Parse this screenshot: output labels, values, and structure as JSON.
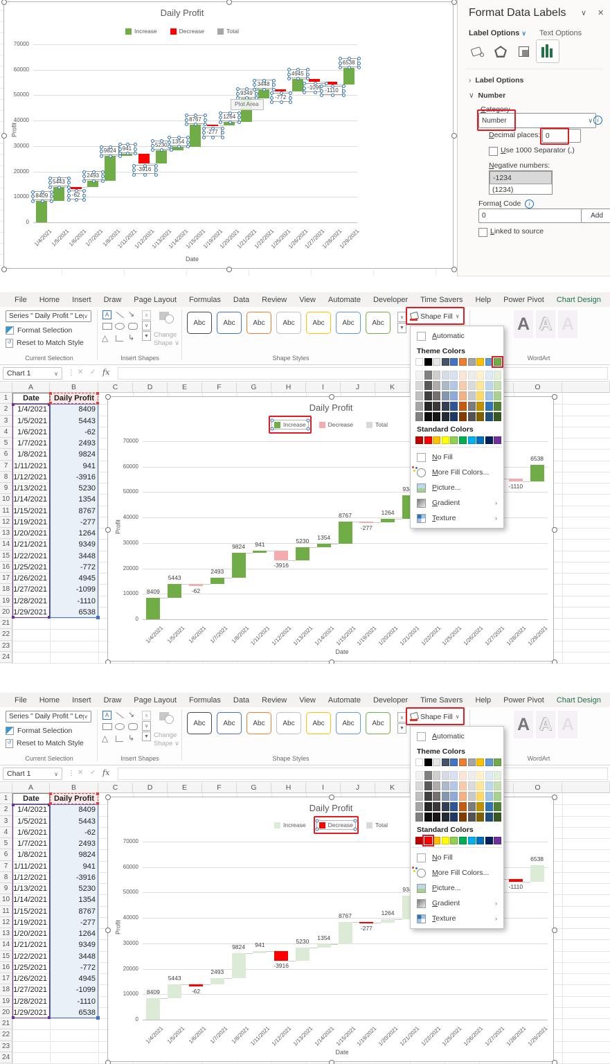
{
  "chart_data": {
    "type": "waterfall",
    "title": "Daily Profit",
    "xlabel": "Date",
    "ylabel": "Profit",
    "legend": [
      "Increase",
      "Decrease",
      "Total"
    ],
    "categories": [
      "1/4/2021",
      "1/5/2021",
      "1/6/2021",
      "1/7/2021",
      "1/8/2021",
      "1/11/2021",
      "1/12/2021",
      "1/13/2021",
      "1/14/2021",
      "1/15/2021",
      "1/19/2021",
      "1/20/2021",
      "1/21/2021",
      "1/22/2021",
      "1/25/2021",
      "1/26/2021",
      "1/27/2021",
      "1/28/2021",
      "1/29/2021"
    ],
    "values": [
      8409,
      5443,
      -62,
      2493,
      9824,
      941,
      -3916,
      5230,
      1354,
      8767,
      -277,
      1264,
      9349,
      3448,
      -772,
      4945,
      -1099,
      -1110,
      6538
    ],
    "ylim": [
      0,
      70000
    ],
    "ytick_step": 10000,
    "grid": true,
    "legend_position": "top",
    "variants": {
      "top": {
        "increase": "#70AD47",
        "decrease": "#FF0000",
        "total": "#A6A6A6",
        "data_labels_selected": true,
        "tooltip": "Plot Area"
      },
      "middle": {
        "increase": "#70AD47",
        "decrease": "#F4ACAE",
        "total": "#D9D9D9",
        "selected_legend": "Increase"
      },
      "bottom": {
        "increase": "#DCEBD5",
        "decrease": "#FF0000",
        "total": "#D9D9D9",
        "selected_legend": "Decrease"
      }
    }
  },
  "ribbon": {
    "tabs": [
      "File",
      "Home",
      "Insert",
      "Draw",
      "Page Layout",
      "Formulas",
      "Data",
      "Review",
      "View",
      "Automate",
      "Developer",
      "Time Savers",
      "Help",
      "Power Pivot",
      "Chart Design"
    ],
    "active_tab": "Chart Design",
    "current_selection": {
      "combo": "Series \" Daily Profit \" Leg",
      "format_selection": "Format Selection",
      "reset": "Reset to Match Style",
      "label": "Current Selection"
    },
    "insert_shapes": {
      "label": "Insert Shapes",
      "change_line1": "Change",
      "change_line2": "Shape"
    },
    "shape_styles": {
      "label": "Shape Styles",
      "preview": "Abc",
      "border_colors": [
        "#464646",
        "#4472C4",
        "#ED7D31",
        "#BFBFBF",
        "#FFC000",
        "#5B9BD5",
        "#70AD47"
      ]
    },
    "shape_fill": "Shape Fill",
    "wordart": {
      "label": "WordArt",
      "letter": "A"
    }
  },
  "formula_bar": {
    "name_box": "Chart 1",
    "fx": "fx"
  },
  "sheet": {
    "columns": [
      "A",
      "B",
      "C",
      "D",
      "E",
      "F",
      "G",
      "H",
      "I",
      "J",
      "K",
      "L",
      "M",
      "N",
      "O"
    ],
    "visible_rows": 25,
    "table": {
      "headers": [
        "Date",
        "Daily Profit"
      ],
      "rows": [
        [
          "1/4/2021",
          "8409"
        ],
        [
          "1/5/2021",
          "5443"
        ],
        [
          "1/6/2021",
          "-62"
        ],
        [
          "1/7/2021",
          "2493"
        ],
        [
          "1/8/2021",
          "9824"
        ],
        [
          "1/11/2021",
          "941"
        ],
        [
          "1/12/2021",
          "-3916"
        ],
        [
          "1/13/2021",
          "5230"
        ],
        [
          "1/14/2021",
          "1354"
        ],
        [
          "1/15/2021",
          "8767"
        ],
        [
          "1/19/2021",
          "-277"
        ],
        [
          "1/20/2021",
          "1264"
        ],
        [
          "1/21/2021",
          "9349"
        ],
        [
          "1/22/2021",
          "3448"
        ],
        [
          "1/25/2021",
          "-772"
        ],
        [
          "1/26/2021",
          "4945"
        ],
        [
          "1/27/2021",
          "-1099"
        ],
        [
          "1/28/2021",
          "-1110"
        ],
        [
          "1/29/2021",
          "6538"
        ]
      ]
    }
  },
  "fill_menu": {
    "automatic": "Automatic",
    "theme_header": "Theme Colors",
    "standard_header": "Standard Colors",
    "no_fill": "No Fill",
    "more_fill": "More Fill Colors...",
    "picture": "Picture...",
    "gradient": "Gradient",
    "texture": "Texture",
    "theme_colors": [
      "#FFFFFF",
      "#000000",
      "#E7E6E6",
      "#44546A",
      "#4472C4",
      "#ED7D31",
      "#A5A5A5",
      "#FFC000",
      "#5B9BD5",
      "#70AD47"
    ],
    "tint_rows": [
      [
        "#F2F2F2",
        "#808080",
        "#D0CECE",
        "#D6DCE5",
        "#D9E2F3",
        "#FBE5D6",
        "#EDEDED",
        "#FFF2CC",
        "#DEEBF7",
        "#E2EFDA"
      ],
      [
        "#D9D9D9",
        "#595959",
        "#AEABAB",
        "#ACB9CA",
        "#B4C7E7",
        "#F8CBAD",
        "#DBDBDB",
        "#FFE699",
        "#BDD7EE",
        "#C6E0B4"
      ],
      [
        "#BFBFBF",
        "#404040",
        "#757070",
        "#8497B0",
        "#8EAADB",
        "#F4B183",
        "#C9C9C9",
        "#FFD966",
        "#9DC3E6",
        "#A9D18E"
      ],
      [
        "#A6A6A6",
        "#262626",
        "#3A3838",
        "#333F50",
        "#2F5597",
        "#C55A11",
        "#7B7B7B",
        "#BF9000",
        "#2E75B6",
        "#548235"
      ],
      [
        "#808080",
        "#0D0D0D",
        "#161616",
        "#222B35",
        "#1F3864",
        "#833C00",
        "#525252",
        "#7F6000",
        "#1F4E79",
        "#385723"
      ]
    ],
    "standard_colors": [
      "#C00000",
      "#FF0000",
      "#FFC000",
      "#FFFF00",
      "#92D050",
      "#00B050",
      "#00B0F0",
      "#0070C0",
      "#002060",
      "#7030A0"
    ],
    "middle_highlight": {
      "section": "theme",
      "index": 9
    },
    "bottom_highlight": {
      "section": "standard",
      "index": 1
    }
  },
  "pane": {
    "title": "Format Data Labels",
    "tab_label_options": "Label Options",
    "tab_text_options": "Text Options",
    "section_label_options": "Label Options",
    "section_number": "Number",
    "category_label": "Category",
    "category_value": "Number",
    "decimal_label": "Decimal places:",
    "decimal_value": "0",
    "separator_label": "Use 1000 Separator (,)",
    "negative_label": "Negative numbers:",
    "negative_option1": "-1234",
    "negative_option2": "(1234)",
    "format_code_label": "Format Code",
    "format_code_value": "0",
    "add_button": "Add",
    "linked_label": "Linked to source"
  },
  "annotation_color": "#E21B22"
}
